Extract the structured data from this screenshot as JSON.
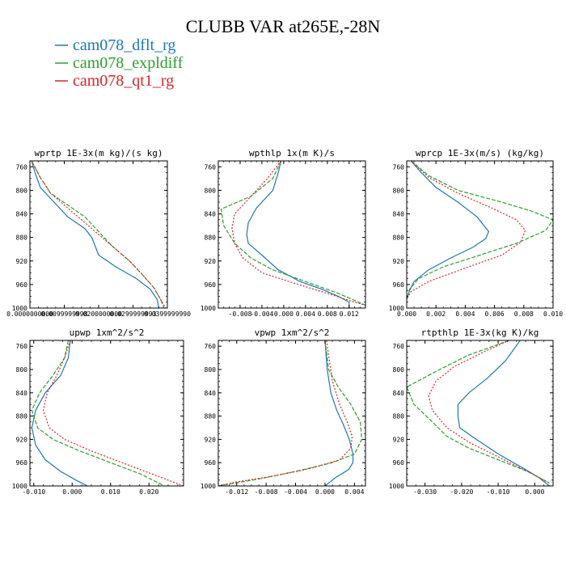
{
  "figure": {
    "title": "CLUBB VAR at265E,-28N",
    "legend": [
      {
        "label": "cam078_dflt_rg",
        "color": "#1f77b4"
      },
      {
        "label": "cam078_expldiff",
        "color": "#2ca02c"
      },
      {
        "label": "cam078_qt1_rg",
        "color": "#d62728"
      }
    ]
  },
  "chart_data": [
    {
      "type": "line",
      "title": "wprtp  1E-3x(m kg)/(s kg)",
      "xlim": [
        0,
        0.04
      ],
      "ylim": [
        1000,
        750
      ],
      "xticks": [
        0,
        0.01,
        0.02,
        0.03,
        0.04
      ],
      "xtick_labels": [
        "0.0000000000",
        "0.0099999998",
        "0.0200000000",
        "0.0299999993",
        "0.0399999990"
      ],
      "yticks": [
        760,
        800,
        840,
        880,
        920,
        960,
        1000
      ],
      "series": [
        {
          "name": "cam078_dflt_rg",
          "color": "#1f77b4",
          "style": "solid",
          "x": [
            0.0005,
            0.0015,
            0.003,
            0.007,
            0.011,
            0.016,
            0.018,
            0.02,
            0.025,
            0.031,
            0.035,
            0.037,
            0.0375
          ],
          "y": [
            750,
            770,
            795,
            820,
            845,
            865,
            880,
            910,
            930,
            950,
            968,
            985,
            1000
          ]
        },
        {
          "name": "cam078_expldiff",
          "color": "#2ca02c",
          "style": "dashed",
          "x": [
            0.0005,
            0.003,
            0.006,
            0.011,
            0.016,
            0.02,
            0.024,
            0.029,
            0.033,
            0.036,
            0.038,
            0.039
          ],
          "y": [
            750,
            778,
            805,
            825,
            845,
            870,
            895,
            920,
            945,
            965,
            985,
            1000
          ]
        },
        {
          "name": "cam078_qt1_rg",
          "color": "#d62728",
          "style": "dotted",
          "x": [
            0.0005,
            0.003,
            0.006,
            0.01,
            0.014,
            0.019,
            0.024,
            0.029,
            0.033,
            0.036,
            0.038,
            0.0395
          ],
          "y": [
            750,
            778,
            805,
            825,
            845,
            870,
            895,
            920,
            945,
            965,
            985,
            1000
          ]
        }
      ]
    },
    {
      "type": "line",
      "title": "wpthlp  1x(m K)/s",
      "xlim": [
        -0.012,
        0.015
      ],
      "ylim": [
        1000,
        750
      ],
      "xticks": [
        -0.008,
        -0.004,
        0.0,
        0.004,
        0.008,
        0.012
      ],
      "xtick_labels": [
        "-0.008",
        "-0.004",
        "0.000",
        "0.004",
        "0.008",
        "0.012"
      ],
      "yticks": [
        760,
        800,
        840,
        880,
        920,
        960,
        1000
      ],
      "series": [
        {
          "name": "cam078_dflt_rg",
          "color": "#1f77b4",
          "style": "solid",
          "x": [
            -0.0005,
            -0.001,
            -0.002,
            -0.005,
            -0.0065,
            -0.0068,
            -0.0065,
            -0.004,
            -0.001,
            0.003,
            0.007,
            0.01,
            0.012,
            0.012
          ],
          "y": [
            750,
            770,
            800,
            830,
            855,
            875,
            890,
            910,
            935,
            955,
            968,
            980,
            990,
            1000
          ]
        },
        {
          "name": "cam078_expldiff",
          "color": "#2ca02c",
          "style": "dashed",
          "x": [
            -0.0005,
            -0.002,
            -0.006,
            -0.0115,
            -0.011,
            -0.009,
            -0.006,
            -0.002,
            0.004,
            0.01,
            0.015
          ],
          "y": [
            750,
            780,
            810,
            832,
            860,
            890,
            915,
            935,
            955,
            975,
            995
          ]
        },
        {
          "name": "cam078_qt1_rg",
          "color": "#d62728",
          "style": "dotted",
          "x": [
            -0.0005,
            -0.003,
            -0.006,
            -0.009,
            -0.0095,
            -0.009,
            -0.0075,
            -0.004,
            0.002,
            0.008,
            0.013,
            0.015
          ],
          "y": [
            750,
            780,
            810,
            840,
            865,
            890,
            915,
            940,
            958,
            975,
            990,
            995
          ]
        }
      ]
    },
    {
      "type": "line",
      "title": "wprcp  1E-3x(m/s) (kg/kg)",
      "xlim": [
        0,
        0.01
      ],
      "ylim": [
        1000,
        750
      ],
      "xticks": [
        0.0,
        0.002,
        0.004,
        0.006,
        0.008,
        0.01
      ],
      "xtick_labels": [
        "0.000",
        "0.002",
        "0.004",
        "0.006",
        "0.008",
        "0.010"
      ],
      "yticks": [
        760,
        800,
        840,
        880,
        920,
        960,
        1000
      ],
      "series": [
        {
          "name": "cam078_dflt_rg",
          "color": "#1f77b4",
          "style": "solid",
          "x": [
            0.0003,
            0.001,
            0.002,
            0.0035,
            0.0048,
            0.0056,
            0.0054,
            0.0045,
            0.003,
            0.0015,
            0.0005,
            0.0002,
            0.0
          ],
          "y": [
            750,
            770,
            795,
            820,
            845,
            870,
            882,
            897,
            915,
            935,
            955,
            970,
            985
          ]
        },
        {
          "name": "cam078_expldiff",
          "color": "#2ca02c",
          "style": "dashed",
          "x": [
            0.0003,
            0.0015,
            0.0035,
            0.0065,
            0.0085,
            0.01,
            0.0095,
            0.0075,
            0.005,
            0.0025,
            0.0008,
            0.0002,
            0.0
          ],
          "y": [
            750,
            775,
            800,
            820,
            835,
            850,
            868,
            890,
            910,
            930,
            950,
            968,
            985
          ]
        },
        {
          "name": "cam078_qt1_rg",
          "color": "#d62728",
          "style": "dotted",
          "x": [
            0.0003,
            0.0015,
            0.0035,
            0.0058,
            0.0075,
            0.0081,
            0.0078,
            0.0065,
            0.004,
            0.0015,
            0.0003,
            0.0
          ],
          "y": [
            750,
            778,
            805,
            830,
            850,
            868,
            888,
            910,
            932,
            955,
            972,
            985
          ]
        }
      ]
    },
    {
      "type": "line",
      "title": "upwp  1xm^2/s^2",
      "xlim": [
        -0.011,
        0.029
      ],
      "ylim": [
        1000,
        750
      ],
      "xticks": [
        -0.01,
        0.0,
        0.01,
        0.02
      ],
      "xtick_labels": [
        "-0.010",
        "0.000",
        "0.010",
        "0.020"
      ],
      "yticks": [
        760,
        800,
        840,
        880,
        920,
        960,
        1000
      ],
      "series": [
        {
          "name": "cam078_dflt_rg",
          "color": "#1f77b4",
          "style": "solid",
          "x": [
            -0.0005,
            -0.001,
            -0.003,
            -0.007,
            -0.0095,
            -0.0105,
            -0.0095,
            -0.007,
            -0.003,
            0.001,
            0.004
          ],
          "y": [
            750,
            780,
            810,
            840,
            870,
            900,
            930,
            955,
            975,
            990,
            1000
          ]
        },
        {
          "name": "cam078_expldiff",
          "color": "#2ca02c",
          "style": "dashed",
          "x": [
            -0.001,
            -0.002,
            -0.005,
            -0.0085,
            -0.0105,
            -0.009,
            -0.005,
            0.002,
            0.01,
            0.018,
            0.024
          ],
          "y": [
            750,
            780,
            810,
            840,
            870,
            900,
            920,
            940,
            960,
            980,
            1000
          ]
        },
        {
          "name": "cam078_qt1_rg",
          "color": "#d62728",
          "style": "dotted",
          "x": [
            -0.0005,
            -0.002,
            -0.004,
            -0.0065,
            -0.0075,
            -0.006,
            -0.002,
            0.005,
            0.013,
            0.021,
            0.029
          ],
          "y": [
            750,
            780,
            810,
            840,
            870,
            900,
            920,
            940,
            960,
            980,
            1000
          ]
        }
      ]
    },
    {
      "type": "line",
      "title": "vpwp  1xm^2/s^2",
      "xlim": [
        -0.0145,
        0.0055
      ],
      "ylim": [
        1000,
        750
      ],
      "xticks": [
        -0.012,
        -0.008,
        -0.004,
        0.0,
        0.004
      ],
      "xtick_labels": [
        "-0.012",
        "-0.008",
        "-0.004",
        "0.000",
        "0.004"
      ],
      "yticks": [
        760,
        800,
        840,
        880,
        920,
        960,
        1000
      ],
      "series": [
        {
          "name": "cam078_dflt_rg",
          "color": "#1f77b4",
          "style": "solid",
          "x": [
            0.0,
            0.0003,
            0.0008,
            0.0016,
            0.0025,
            0.0033,
            0.0038,
            0.0038,
            0.0032,
            0.0015,
            0.0
          ],
          "y": [
            750,
            800,
            840,
            870,
            895,
            920,
            945,
            960,
            972,
            985,
            1000
          ]
        },
        {
          "name": "cam078_expldiff",
          "color": "#2ca02c",
          "style": "dashed",
          "x": [
            0.0,
            0.0005,
            0.0018,
            0.0035,
            0.0048,
            0.005,
            0.004,
            0.001,
            -0.004,
            -0.009,
            -0.0145
          ],
          "y": [
            750,
            800,
            830,
            860,
            890,
            920,
            945,
            960,
            975,
            988,
            1000
          ]
        },
        {
          "name": "cam078_qt1_rg",
          "color": "#d62728",
          "style": "dotted",
          "x": [
            0.0002,
            0.001,
            0.002,
            0.003,
            0.0037,
            0.0035,
            0.002,
            -0.002,
            -0.007,
            -0.012,
            -0.0145
          ],
          "y": [
            750,
            820,
            860,
            890,
            915,
            935,
            955,
            970,
            983,
            993,
            1000
          ]
        }
      ]
    },
    {
      "type": "line",
      "title": "rtpthlp  1E-3x(kg K)/kg",
      "xlim": [
        -0.035,
        0.005
      ],
      "ylim": [
        1000,
        750
      ],
      "xticks": [
        -0.03,
        -0.02,
        -0.01,
        0.0
      ],
      "xtick_labels": [
        "-0.030",
        "-0.020",
        "-0.010",
        "0.000"
      ],
      "yticks": [
        760,
        800,
        840,
        880,
        920,
        960,
        1000
      ],
      "series": [
        {
          "name": "cam078_dflt_rg",
          "color": "#1f77b4",
          "style": "solid",
          "x": [
            -0.004,
            -0.008,
            -0.013,
            -0.018,
            -0.021,
            -0.021,
            -0.0205,
            -0.016,
            -0.01,
            -0.003,
            0.001,
            0.004
          ],
          "y": [
            750,
            785,
            815,
            840,
            860,
            880,
            900,
            920,
            945,
            970,
            985,
            1000
          ]
        },
        {
          "name": "cam078_expldiff",
          "color": "#2ca02c",
          "style": "dashed",
          "x": [
            -0.007,
            -0.018,
            -0.026,
            -0.035,
            -0.033,
            -0.028,
            -0.024,
            -0.018,
            -0.01,
            -0.002,
            0.004
          ],
          "y": [
            750,
            775,
            800,
            830,
            860,
            890,
            915,
            935,
            955,
            975,
            995
          ]
        },
        {
          "name": "cam078_qt1_rg",
          "color": "#d62728",
          "style": "dotted",
          "x": [
            -0.007,
            -0.014,
            -0.022,
            -0.027,
            -0.029,
            -0.028,
            -0.024,
            -0.018,
            -0.01,
            -0.002,
            0.004
          ],
          "y": [
            750,
            770,
            795,
            820,
            845,
            870,
            900,
            925,
            950,
            975,
            995
          ]
        }
      ]
    }
  ]
}
